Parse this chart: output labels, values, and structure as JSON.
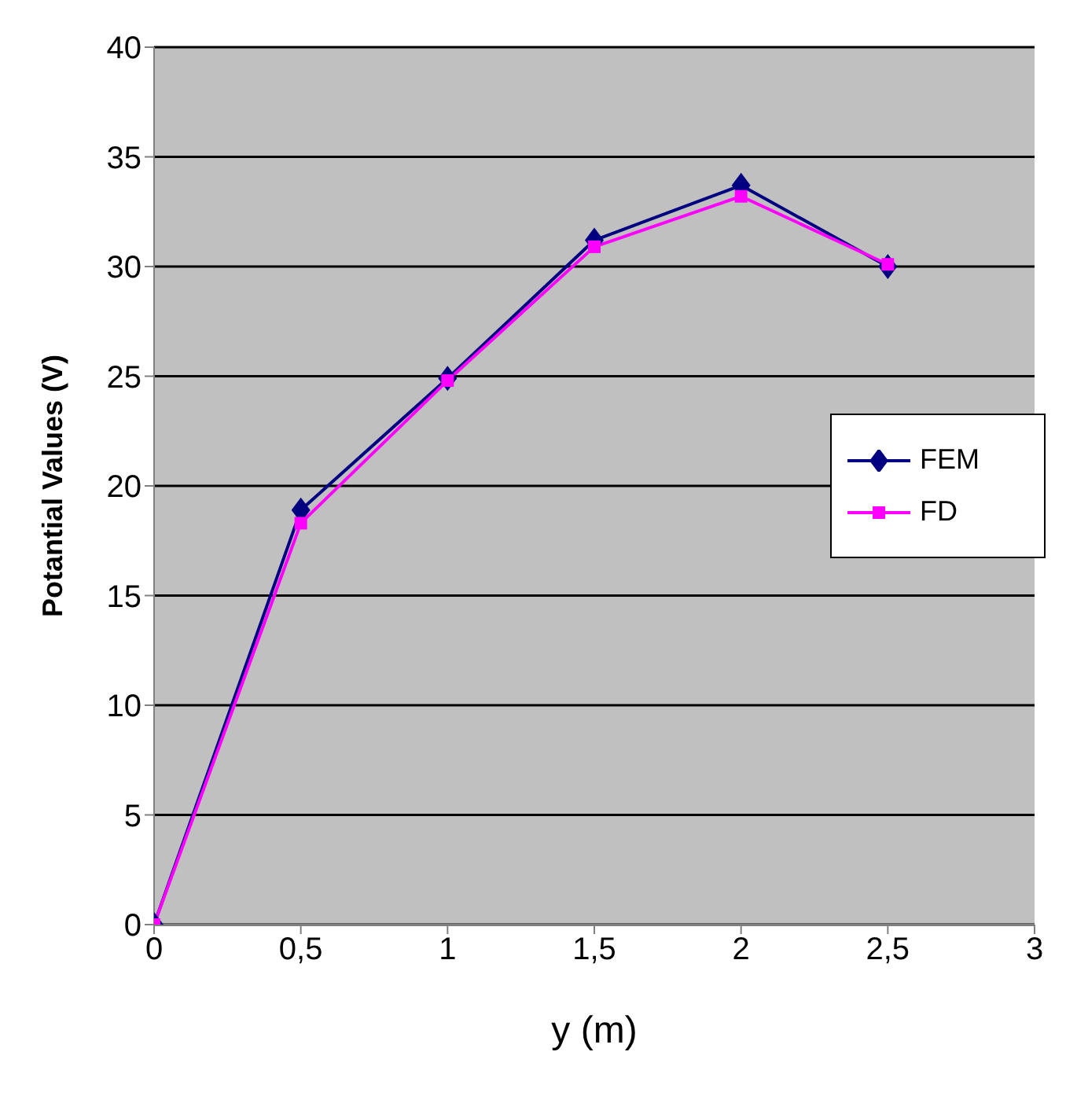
{
  "chart_data": {
    "type": "line",
    "xlabel": "y (m)",
    "ylabel": "Potantial Values (V)",
    "x": [
      0,
      0.5,
      1,
      1.5,
      2,
      2.5
    ],
    "series": [
      {
        "name": "FEM",
        "color": "#000080",
        "marker": "diamond",
        "values": [
          0,
          18.9,
          24.9,
          31.2,
          33.7,
          30.0
        ]
      },
      {
        "name": "FD",
        "color": "#ff00ff",
        "marker": "square",
        "values": [
          0,
          18.3,
          24.8,
          30.9,
          33.2,
          30.1
        ]
      }
    ],
    "xlim": [
      0,
      3
    ],
    "xticks": [
      0,
      {
        "value": 0.5,
        "label": "0,5"
      },
      1,
      {
        "value": 1.5,
        "label": "1,5"
      },
      2,
      {
        "value": 2.5,
        "label": "2,5"
      },
      3
    ],
    "ylim": [
      0,
      40
    ],
    "yticks": [
      0,
      5,
      10,
      15,
      20,
      25,
      30,
      35,
      40
    ],
    "grid": "y",
    "legend": "right",
    "line_style": "solid"
  }
}
